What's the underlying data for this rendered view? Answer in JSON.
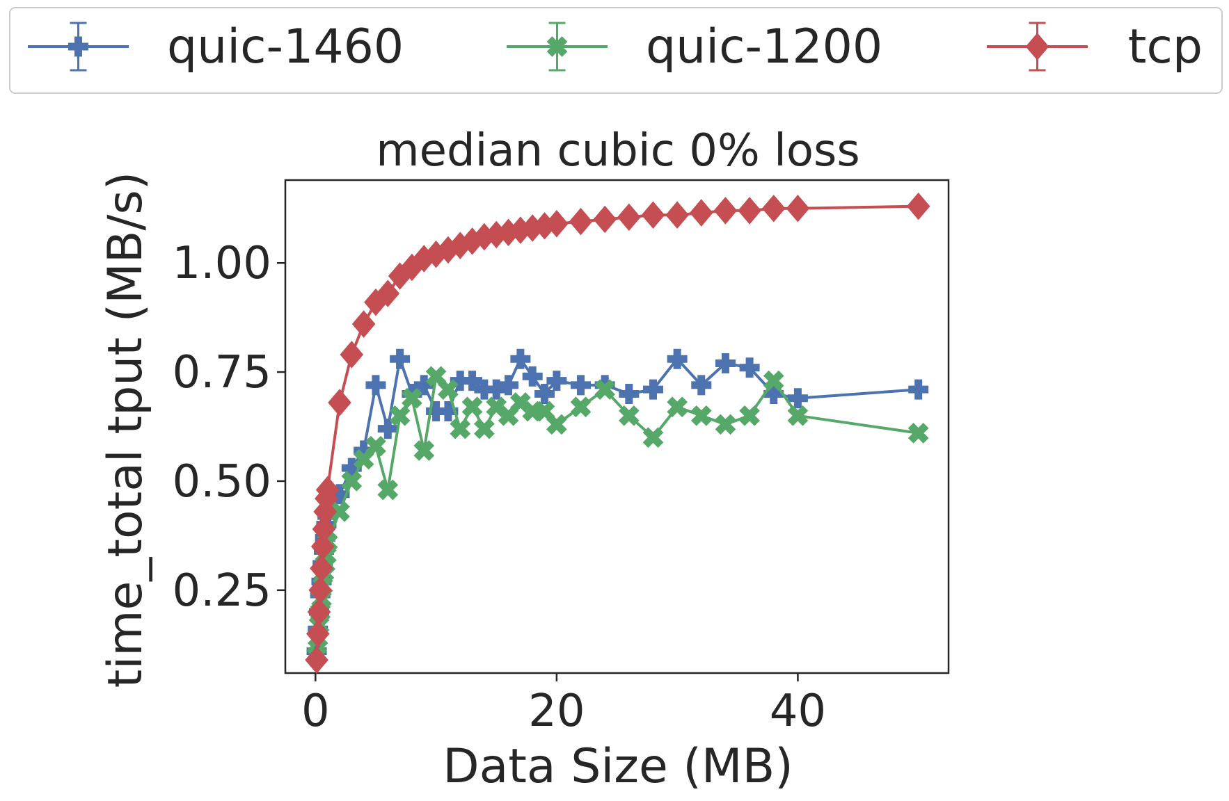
{
  "chart_data": {
    "type": "line",
    "title": "median cubic 0% loss",
    "xlabel": "Data Size (MB)",
    "ylabel": "time_total tput (MB/s)",
    "xlim": [
      -2.5,
      52.5
    ],
    "ylim": [
      0.06,
      1.19
    ],
    "xticks": [
      0,
      20,
      40
    ],
    "xtick_labels": [
      "0",
      "20",
      "40"
    ],
    "yticks": [
      0.25,
      0.5,
      0.75,
      1.0
    ],
    "ytick_labels": [
      "0.25",
      "0.50",
      "0.75",
      "1.00"
    ],
    "grid": false,
    "legend_position": "top, outside plot",
    "series": [
      {
        "name": "quic-1460",
        "color": "#4c72b0",
        "marker": "plus",
        "x": [
          0.1,
          0.2,
          0.3,
          0.4,
          0.5,
          0.6,
          0.7,
          0.8,
          0.9,
          1,
          2,
          3,
          4,
          5,
          6,
          7,
          8,
          9,
          10,
          11,
          12,
          13,
          14,
          15,
          16,
          17,
          18,
          19,
          20,
          22,
          24,
          26,
          28,
          30,
          32,
          34,
          36,
          38,
          40,
          50
        ],
        "y": [
          0.11,
          0.16,
          0.2,
          0.24,
          0.27,
          0.31,
          0.34,
          0.37,
          0.4,
          0.42,
          0.47,
          0.53,
          0.57,
          0.72,
          0.62,
          0.78,
          0.7,
          0.72,
          0.66,
          0.66,
          0.73,
          0.73,
          0.71,
          0.71,
          0.72,
          0.78,
          0.74,
          0.7,
          0.73,
          0.72,
          0.72,
          0.7,
          0.71,
          0.78,
          0.72,
          0.77,
          0.76,
          0.7,
          0.69,
          0.71
        ]
      },
      {
        "name": "quic-1200",
        "color": "#55a868",
        "marker": "x",
        "x": [
          0.1,
          0.2,
          0.3,
          0.4,
          0.5,
          0.6,
          0.7,
          0.8,
          0.9,
          1,
          2,
          3,
          4,
          5,
          6,
          7,
          8,
          9,
          10,
          11,
          12,
          13,
          14,
          15,
          16,
          17,
          18,
          19,
          20,
          22,
          24,
          26,
          28,
          30,
          32,
          34,
          36,
          38,
          40,
          50
        ],
        "y": [
          0.1,
          0.14,
          0.17,
          0.2,
          0.23,
          0.26,
          0.29,
          0.31,
          0.33,
          0.36,
          0.43,
          0.5,
          0.55,
          0.58,
          0.48,
          0.65,
          0.69,
          0.57,
          0.74,
          0.71,
          0.62,
          0.67,
          0.62,
          0.67,
          0.65,
          0.68,
          0.66,
          0.66,
          0.63,
          0.67,
          0.71,
          0.65,
          0.6,
          0.67,
          0.65,
          0.63,
          0.65,
          0.73,
          0.65,
          0.61
        ]
      },
      {
        "name": "tcp",
        "color": "#c44e52",
        "marker": "diamond",
        "x": [
          0.1,
          0.2,
          0.3,
          0.4,
          0.5,
          0.6,
          0.7,
          0.8,
          0.9,
          1,
          2,
          3,
          4,
          5,
          6,
          7,
          8,
          9,
          10,
          11,
          12,
          13,
          14,
          15,
          16,
          17,
          18,
          19,
          20,
          22,
          24,
          26,
          28,
          30,
          32,
          34,
          36,
          38,
          40,
          50
        ],
        "y": [
          0.09,
          0.15,
          0.2,
          0.25,
          0.3,
          0.35,
          0.39,
          0.43,
          0.46,
          0.48,
          0.68,
          0.79,
          0.86,
          0.91,
          0.93,
          0.97,
          0.99,
          1.01,
          1.02,
          1.03,
          1.04,
          1.05,
          1.06,
          1.065,
          1.07,
          1.075,
          1.08,
          1.085,
          1.09,
          1.095,
          1.1,
          1.105,
          1.11,
          1.11,
          1.115,
          1.12,
          1.12,
          1.125,
          1.125,
          1.13
        ]
      }
    ]
  }
}
